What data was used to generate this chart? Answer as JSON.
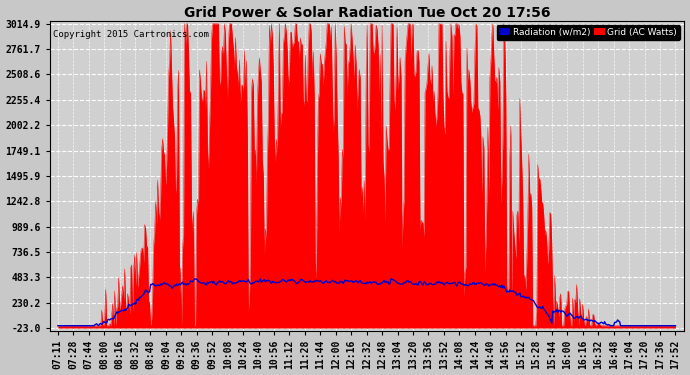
{
  "title": "Grid Power & Solar Radiation Tue Oct 20 17:56",
  "copyright": "Copyright 2015 Cartronics.com",
  "yticks": [
    3014.9,
    2761.7,
    2508.6,
    2255.4,
    2002.2,
    1749.1,
    1495.9,
    1242.8,
    989.6,
    736.5,
    483.3,
    230.2,
    -23.0
  ],
  "ylim_min": -23.0,
  "ylim_max": 3014.9,
  "background_color": "#c8c8c8",
  "plot_bg_color": "#d0d0d0",
  "red_color": "#ff0000",
  "blue_color": "#0000cd",
  "legend_rad_bg": "#0000cd",
  "legend_grid_bg": "#ff0000",
  "xtick_labels": [
    "07:11",
    "07:28",
    "07:44",
    "08:00",
    "08:16",
    "08:32",
    "08:48",
    "09:04",
    "09:20",
    "09:36",
    "09:52",
    "10:08",
    "10:24",
    "10:40",
    "10:56",
    "11:12",
    "11:28",
    "11:44",
    "12:00",
    "12:16",
    "12:32",
    "12:48",
    "13:04",
    "13:20",
    "13:36",
    "13:52",
    "14:08",
    "14:24",
    "14:40",
    "14:56",
    "15:12",
    "15:28",
    "15:44",
    "16:00",
    "16:16",
    "16:32",
    "16:48",
    "17:04",
    "17:20",
    "17:36",
    "17:52"
  ],
  "n_points": 620
}
